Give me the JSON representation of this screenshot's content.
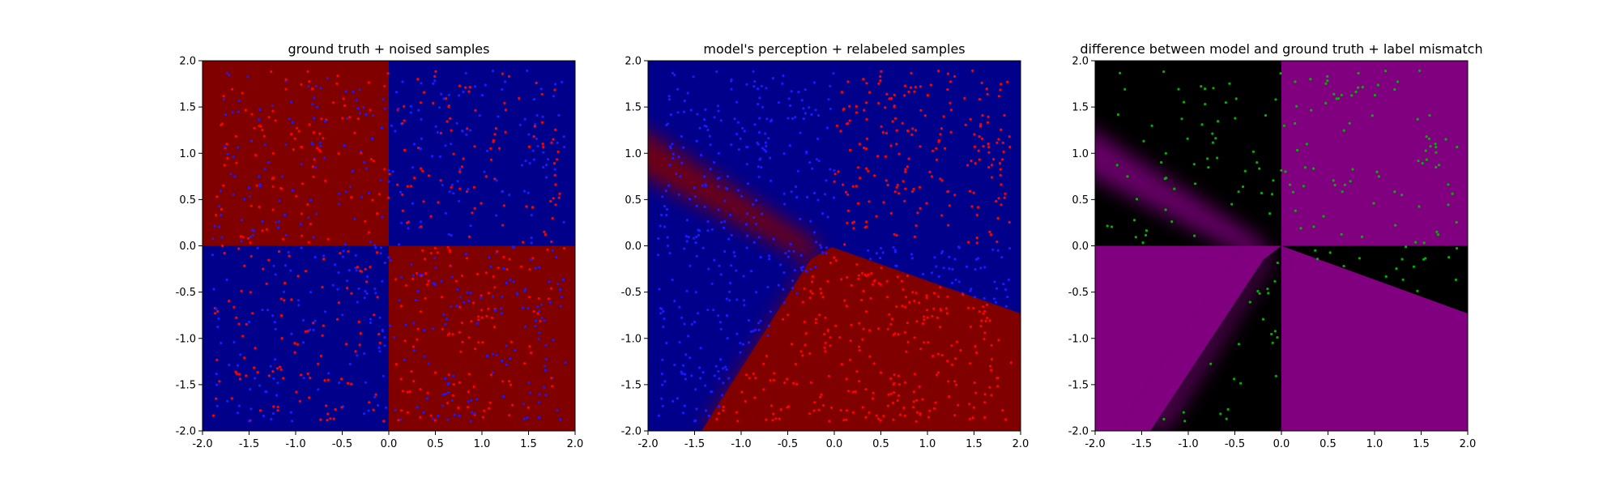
{
  "figure": {
    "colors": {
      "red": "#800000",
      "blue": "#00008b",
      "purple": "#800080",
      "black": "#000000",
      "point_red": "#ff0000",
      "point_blue": "#1a1aff",
      "point_green": "#00b000"
    }
  },
  "chart_data": [
    {
      "type": "heatmap",
      "title": "ground truth + noised samples",
      "xlim": [
        -2.0,
        2.0
      ],
      "ylim": [
        -2.0,
        2.0
      ],
      "xticks": [
        "-2.0",
        "-1.5",
        "-1.0",
        "-0.5",
        "0.0",
        "0.5",
        "1.0",
        "1.5",
        "2.0"
      ],
      "yticks": [
        "-2.0",
        "-1.5",
        "-1.0",
        "-0.5",
        "0.0",
        "0.5",
        "1.0",
        "1.5",
        "2.0"
      ],
      "regions": [
        {
          "name": "x<0, y>0",
          "color": "red"
        },
        {
          "name": "x>0, y>0",
          "color": "blue"
        },
        {
          "name": "x<0, y<0",
          "color": "blue"
        },
        {
          "name": "x>0, y<0",
          "color": "red"
        }
      ],
      "scatter": "samples uniformly distributed in [-2,2]x[-2,2], mixed red and blue labels"
    },
    {
      "type": "heatmap",
      "title": "model's perception + relabeled samples",
      "xlim": [
        -2.0,
        2.0
      ],
      "ylim": [
        -2.0,
        2.0
      ],
      "xticks": [
        "-2.0",
        "-1.5",
        "-1.0",
        "-0.5",
        "0.0",
        "0.5",
        "1.0",
        "1.5",
        "2.0"
      ],
      "yticks": [
        "-2.0",
        "-1.5",
        "-1.0",
        "-0.5",
        "0.0",
        "0.5",
        "1.0",
        "1.5",
        "2.0"
      ],
      "decision_boundary_points": [
        [
          -2.0,
          1.2
        ],
        [
          -0.2,
          -0.2
        ],
        [
          -1.4,
          -2.0
        ],
        [
          0.0,
          0.0
        ],
        [
          2.0,
          -0.75
        ]
      ],
      "scatter": "samples relabeled by model: red in upper-right and lower wedge, blue elsewhere"
    },
    {
      "type": "heatmap",
      "title": "difference between model and ground truth + label mismatch",
      "xlim": [
        -2.0,
        2.0
      ],
      "ylim": [
        -2.0,
        2.0
      ],
      "xticks": [
        "-2.0",
        "-1.5",
        "-1.0",
        "-0.5",
        "0.0",
        "0.5",
        "1.0",
        "1.5",
        "2.0"
      ],
      "yticks": [
        "-2.0",
        "-1.5",
        "-1.0",
        "-0.5",
        "0.0",
        "0.5",
        "1.0",
        "1.5",
        "2.0"
      ],
      "colors": [
        "purple",
        "black"
      ],
      "scatter": "green points marking label mismatch"
    }
  ]
}
